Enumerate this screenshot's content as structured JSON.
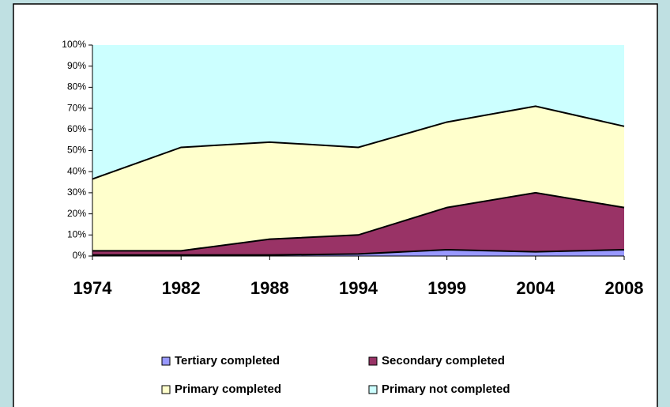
{
  "chart_data": {
    "type": "stacked_area",
    "categories": [
      "1974",
      "1982",
      "1988",
      "1994",
      "1999",
      "2004",
      "2008"
    ],
    "series": [
      {
        "name": "Tertiary completed",
        "color": "#9999ff",
        "values": [
          0.5,
          0.5,
          0.5,
          1,
          3,
          2,
          3
        ]
      },
      {
        "name": "Secondary completed",
        "color": "#993366",
        "values": [
          2,
          2,
          7.5,
          9,
          20,
          28,
          20
        ]
      },
      {
        "name": "Primary completed",
        "color": "#ffffcc",
        "values": [
          34,
          49,
          46,
          41.5,
          40.5,
          41,
          38.5
        ]
      },
      {
        "name": "Primary not completed",
        "color": "#ccffff",
        "values": [
          63.5,
          48.5,
          46,
          48.5,
          36.5,
          29,
          38.5
        ]
      }
    ],
    "ylim": [
      0,
      100
    ],
    "yticks": [
      {
        "value": 0,
        "label": "0%"
      },
      {
        "value": 10,
        "label": "10%"
      },
      {
        "value": 20,
        "label": "20%"
      },
      {
        "value": 30,
        "label": "30%"
      },
      {
        "value": 40,
        "label": "40%"
      },
      {
        "value": 50,
        "label": "50%"
      },
      {
        "value": 60,
        "label": "60%"
      },
      {
        "value": 70,
        "label": "70%"
      },
      {
        "value": 80,
        "label": "80%"
      },
      {
        "value": 90,
        "label": "90%"
      },
      {
        "value": 100,
        "label": "100%"
      }
    ]
  }
}
